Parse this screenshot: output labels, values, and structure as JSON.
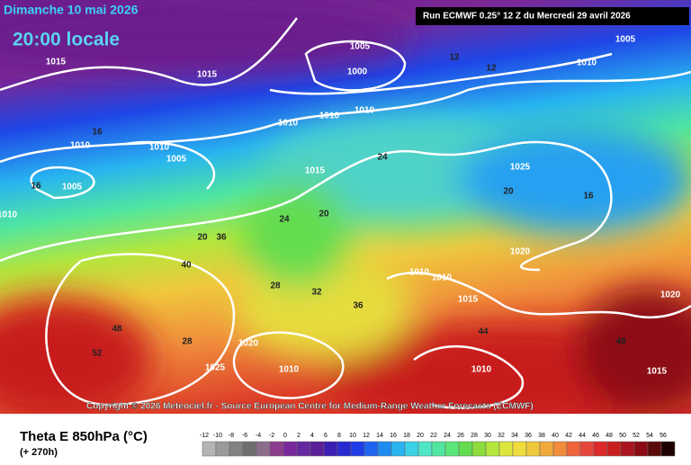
{
  "header": {
    "date": "Dimanche 10 mai 2026",
    "time": "20:00 locale",
    "run": "Run ECMWF 0.25° 12 Z du Mercredi 29 avril 2026"
  },
  "copyright": "Copyright © 2026 Meteociel.fr - Source European Centre for Medium-Range Weather Forecasts (ECMWF)",
  "footer": {
    "title": "Theta E 850hPa (°C)",
    "lead": "(+ 270h)"
  },
  "legend": {
    "ticks": [
      -12,
      -10,
      -8,
      -6,
      -4,
      -2,
      0,
      2,
      4,
      6,
      8,
      10,
      12,
      14,
      16,
      18,
      20,
      22,
      24,
      26,
      28,
      30,
      32,
      34,
      36,
      38,
      40,
      42,
      44,
      46,
      48,
      50,
      52,
      54,
      56
    ],
    "colors": [
      "#b4b4b4",
      "#9a9a9a",
      "#828282",
      "#6e6e6e",
      "#8c6e8c",
      "#8c3c8c",
      "#78289a",
      "#6428a0",
      "#5a1e96",
      "#3c1eb4",
      "#2828d2",
      "#1e3ce6",
      "#1e64f0",
      "#1e8cf0",
      "#28b4f0",
      "#3cd2e6",
      "#50e6c8",
      "#50e6a0",
      "#5ae678",
      "#64dc50",
      "#8cdc3c",
      "#b4e63c",
      "#dce63c",
      "#f0dc3c",
      "#f0c83c",
      "#f0aa3c",
      "#f08c3c",
      "#f0643c",
      "#e6463c",
      "#dc2828",
      "#c81e1e",
      "#aa141e",
      "#8c0a14",
      "#5a0a0a",
      "#1e0000"
    ]
  },
  "map": {
    "pressure_labels": [
      1005,
      1000,
      1015,
      1015,
      1010,
      1010,
      1010,
      1010,
      1010,
      1005,
      1005,
      1015,
      1025,
      1020,
      1010,
      1010,
      1015,
      1020,
      1025,
      1010,
      1010,
      1005,
      1010,
      1010,
      1015,
      1020
    ],
    "theta_labels": [
      12,
      12,
      16,
      16,
      20,
      20,
      24,
      24,
      28,
      32,
      36,
      40,
      44,
      48,
      48,
      52,
      36,
      28,
      20,
      16
    ]
  }
}
